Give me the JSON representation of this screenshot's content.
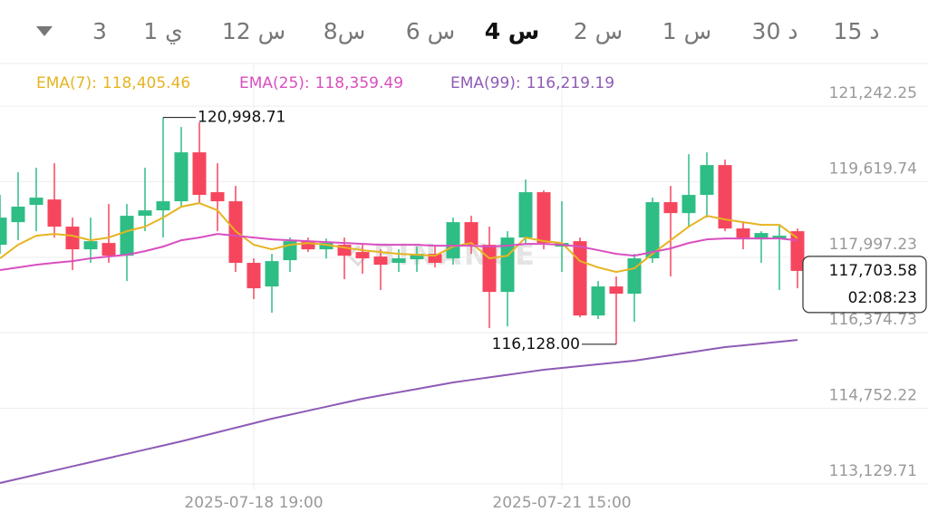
{
  "tabs": {
    "items": [
      "3",
      "1 ي",
      "12 س",
      "8س",
      "6 س",
      "4 س",
      "2 س",
      "1 س",
      "30 د",
      "15 د"
    ],
    "selected": "4 س"
  },
  "chart_data": {
    "type": "candlestick",
    "watermark": "BINANCE",
    "categories": [
      null,
      null,
      null,
      null,
      null,
      null,
      null,
      null,
      null,
      null,
      null,
      null,
      null,
      null,
      "2025-07-18 19:00",
      null,
      null,
      null,
      null,
      null,
      null,
      null,
      null,
      null,
      null,
      null,
      null,
      null,
      null,
      null,
      null,
      "2025-07-21 15:00",
      null,
      null,
      null,
      null,
      null,
      null,
      null,
      null,
      null,
      null,
      null,
      null,
      null
    ],
    "open": [
      118264,
      118751,
      119121,
      119238,
      118654,
      118167,
      118303,
      118030,
      118887,
      119004,
      119199,
      120250,
      119394,
      119199,
      117876,
      117369,
      117934,
      118342,
      118167,
      118264,
      118109,
      118012,
      117876,
      117953,
      118070,
      117973,
      118751,
      118264,
      117252,
      118420,
      119394,
      118225,
      118342,
      116746,
      117369,
      117213,
      117973,
      119180,
      118945,
      119336,
      119977,
      118615,
      118381,
      118400,
      118556
    ],
    "high": [
      119336,
      119822,
      119919,
      120016,
      118848,
      118848,
      119141,
      119141,
      119919,
      120998.71,
      120795,
      120892,
      120016,
      119530,
      117973,
      118070,
      118420,
      118420,
      118400,
      118420,
      118264,
      118167,
      118167,
      118225,
      118264,
      118848,
      118887,
      118654,
      118556,
      119666,
      119433,
      119199,
      118420,
      117486,
      117583,
      118070,
      119277,
      119530,
      120210,
      120250,
      120094,
      118751,
      118556,
      118692,
      118615
    ],
    "low": [
      118070,
      118362,
      118556,
      118420,
      117720,
      117876,
      117876,
      117486,
      118556,
      118420,
      119082,
      119141,
      118556,
      117681,
      117097,
      116805,
      117681,
      118109,
      117970,
      117525,
      117642,
      117292,
      117681,
      117681,
      117778,
      117836,
      118070,
      116474,
      116513,
      118303,
      118167,
      117681,
      116707,
      116669,
      116128.0,
      116610,
      117876,
      117583,
      118654,
      118848,
      118556,
      118167,
      117876,
      117292,
      117330
    ],
    "close": [
      118848,
      119083,
      119277,
      118654,
      118167,
      118342,
      118030,
      118887,
      119004,
      119199,
      120250,
      119336,
      119199,
      117876,
      117330,
      117914,
      118342,
      118167,
      118303,
      118030,
      117973,
      117836,
      117973,
      118070,
      117876,
      118751,
      118264,
      117252,
      118420,
      119394,
      118303,
      118303,
      116746,
      117369,
      117213,
      117973,
      119180,
      118945,
      119336,
      119977,
      118615,
      118381,
      118517,
      118459,
      117703.58
    ],
    "up_color": "#2ebd85",
    "down_color": "#f6465d",
    "series": [
      {
        "name": "EMA(7):",
        "last_label": "118,405.46",
        "color": "#e6b422",
        "values": [
          117973,
          118264,
          118459,
          118498,
          118459,
          118362,
          118420,
          118556,
          118654,
          118848,
          119082,
          119160,
          119004,
          118556,
          118264,
          118167,
          118264,
          118303,
          118264,
          118206,
          118148,
          118109,
          118070,
          118050,
          118030,
          118225,
          118303,
          117973,
          118030,
          118420,
          118342,
          118303,
          117914,
          117778,
          117681,
          117759,
          118070,
          118362,
          118654,
          118887,
          118809,
          118751,
          118692,
          118692,
          118405.46
        ]
      },
      {
        "name": "EMA(25):",
        "last_label": "118,359.49",
        "color": "#d94fbf",
        "values": [
          117720,
          117778,
          117836,
          117876,
          117914,
          117973,
          118012,
          118050,
          118128,
          118225,
          118362,
          118420,
          118498,
          118459,
          118420,
          118381,
          118362,
          118342,
          118323,
          118303,
          118284,
          118264,
          118264,
          118264,
          118245,
          118245,
          118245,
          118225,
          118245,
          118284,
          118284,
          118264,
          118225,
          118148,
          118070,
          118030,
          118109,
          118186,
          118303,
          118381,
          118400,
          118400,
          118400,
          118400,
          118359.49
        ]
      },
      {
        "name": "EMA(99):",
        "last_label": "116,219.19",
        "color": "#8e5bb5",
        "values": [
          113147,
          113236,
          113326,
          113415,
          113505,
          113594,
          113684,
          113773,
          113863,
          113952,
          114042,
          114139,
          114236,
          114334,
          114431,
          114528,
          114614,
          114700,
          114785,
          114871,
          114957,
          115027,
          115097,
          115167,
          115237,
          115307,
          115362,
          115416,
          115471,
          115525,
          115580,
          115619,
          115658,
          115696,
          115735,
          115774,
          115832,
          115891,
          115949,
          116008,
          116066,
          116104,
          116143,
          116181,
          116219.19
        ]
      }
    ],
    "ylim": [
      113010,
      122160
    ],
    "yticks": [
      {
        "value": 121242.25,
        "label": "121,242.25"
      },
      {
        "value": 119619.74,
        "label": "119,619.74"
      },
      {
        "value": 117997.23,
        "label": "117,997.23"
      },
      {
        "value": 116374.73,
        "label": "116,374.73"
      },
      {
        "value": 114752.22,
        "label": "114,752.22"
      },
      {
        "value": 113129.71,
        "label": "113,129.71"
      }
    ],
    "grid": true,
    "max_annotation": {
      "value": 120998.71,
      "label": "120,998.71"
    },
    "min_annotation": {
      "value": 116128.0,
      "label": "116,128.00"
    },
    "last_price": {
      "value": 117703.58,
      "label": "117,703.58"
    },
    "countdown": "02:08:23"
  }
}
